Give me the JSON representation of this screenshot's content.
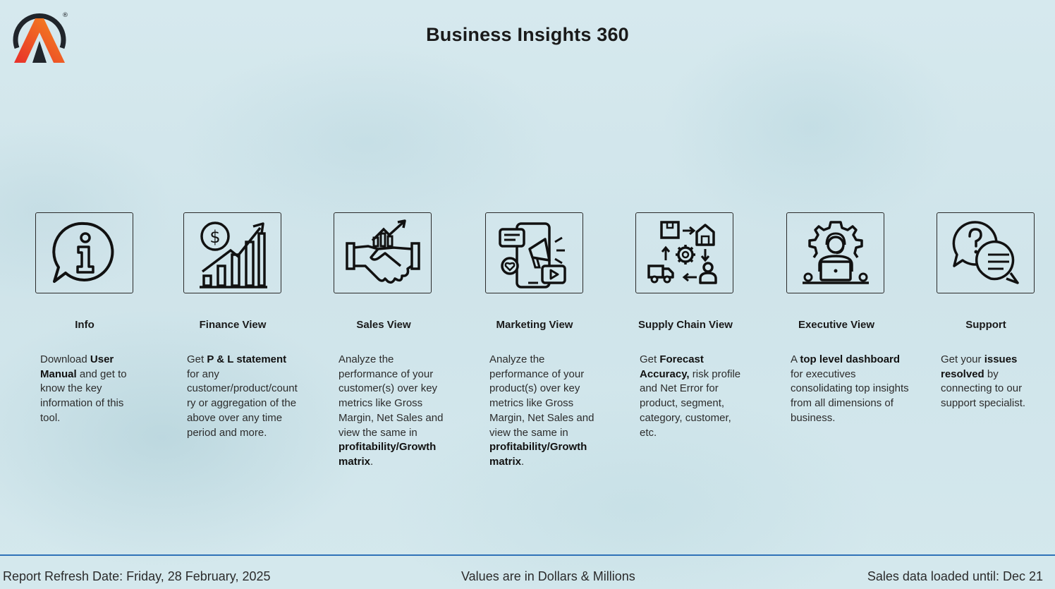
{
  "header": {
    "title": "Business Insights 360",
    "logo_mark": "®"
  },
  "cards": [
    {
      "icon": "info-speech-bubble-icon",
      "title": "Info",
      "desc": [
        {
          "t": "Download "
        },
        {
          "t": "User Manual",
          "b": true
        },
        {
          "t": " and get to know the key information of this tool."
        }
      ]
    },
    {
      "icon": "finance-growth-chart-icon",
      "title": "Finance View",
      "desc": [
        {
          "t": "Get "
        },
        {
          "t": "P & L statement",
          "b": true
        },
        {
          "t": " for any customer/product/country or aggregation of the above over any time period and more."
        }
      ]
    },
    {
      "icon": "handshake-growth-icon",
      "title": "Sales View",
      "desc": [
        {
          "t": "Analyze the performance of your customer(s) over key metrics like Gross Margin, Net Sales and view the same in "
        },
        {
          "t": "profitability/Growth matrix",
          "b": true
        },
        {
          "t": "."
        }
      ]
    },
    {
      "icon": "phone-megaphone-icon",
      "title": "Marketing View",
      "desc": [
        {
          "t": "Analyze the performance of your product(s) over key metrics like Gross Margin, Net Sales and view the same in "
        },
        {
          "t": "profitability/Growth matrix",
          "b": true
        },
        {
          "t": "."
        }
      ]
    },
    {
      "icon": "supply-chain-cycle-icon",
      "title": "Supply Chain View",
      "desc": [
        {
          "t": "Get "
        },
        {
          "t": "Forecast Accuracy,",
          "b": true
        },
        {
          "t": " risk profile and Net Error for product, segment, category, customer, etc."
        }
      ]
    },
    {
      "icon": "executive-laptop-gear-icon",
      "title": "Executive View",
      "desc": [
        {
          "t": "A "
        },
        {
          "t": "top level dashboard",
          "b": true
        },
        {
          "t": " for executives consolidating top insights from all dimensions of business."
        }
      ]
    },
    {
      "icon": "support-question-bubble-icon",
      "title": "Support",
      "desc": [
        {
          "t": "Get your "
        },
        {
          "t": "issues resolved",
          "b": true
        },
        {
          "t": " by connecting to our support specialist."
        }
      ]
    }
  ],
  "footer": {
    "refresh": "Report Refresh Date:  Friday, 28 February, 2025",
    "units": "Values are in Dollars & Millions",
    "loaded": "Sales data loaded until: Dec 21"
  },
  "colors": {
    "footer_line": "#2f72b8",
    "logo_red": "#e8432a",
    "logo_orange": "#f47a20",
    "logo_dark": "#20252b"
  }
}
